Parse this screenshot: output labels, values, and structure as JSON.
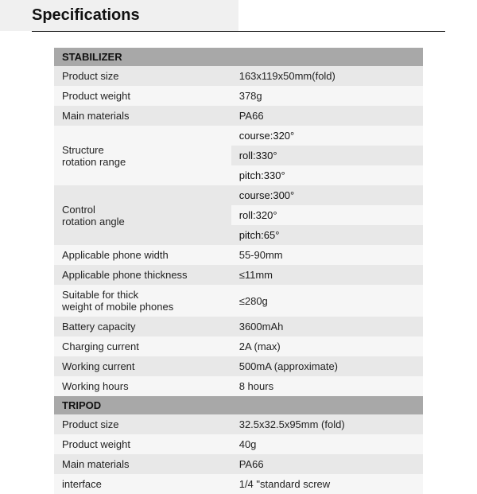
{
  "page": {
    "title": "Specifications"
  },
  "sections": {
    "stabilizer": {
      "header": "STABILIZER",
      "product_size": {
        "label": "Product size",
        "value": "163x119x50mm(fold)"
      },
      "product_weight": {
        "label": "Product weight",
        "value": "378g"
      },
      "main_materials": {
        "label": "Main materials",
        "value": "PA66"
      },
      "structure_rotation_range": {
        "label_l1": "Structure",
        "label_l2": "rotation range",
        "course": "course:320°",
        "roll": "roll:330°",
        "pitch": "pitch:330°"
      },
      "control_rotation_angle": {
        "label_l1": "Control",
        "label_l2": "rotation angle",
        "course": "course:300°",
        "roll": "roll:320°",
        "pitch": "pitch:65°"
      },
      "applicable_phone_width": {
        "label": "Applicable phone width",
        "value": "55-90mm"
      },
      "applicable_phone_thickness": {
        "label": "Applicable phone thickness",
        "value": "≤11mm"
      },
      "suitable_weight": {
        "label_l1": "Suitable for thick",
        "label_l2": "weight of mobile phones",
        "value": "≤280g"
      },
      "battery_capacity": {
        "label": "Battery capacity",
        "value": "3600mAh"
      },
      "charging_current": {
        "label": "Charging current",
        "value": "2A (max)"
      },
      "working_current": {
        "label": "Working current",
        "value": "500mA (approximate)"
      },
      "working_hours": {
        "label": "Working hours",
        "value": "8 hours"
      }
    },
    "tripod": {
      "header": "TRIPOD",
      "product_size": {
        "label": "Product size",
        "value": "32.5x32.5x95mm (fold)"
      },
      "product_weight": {
        "label": "Product weight",
        "value": "40g"
      },
      "main_materials": {
        "label": "Main materials",
        "value": "PA66"
      },
      "interface": {
        "label": "interface",
        "value": "1/4 \"standard screw"
      }
    }
  }
}
